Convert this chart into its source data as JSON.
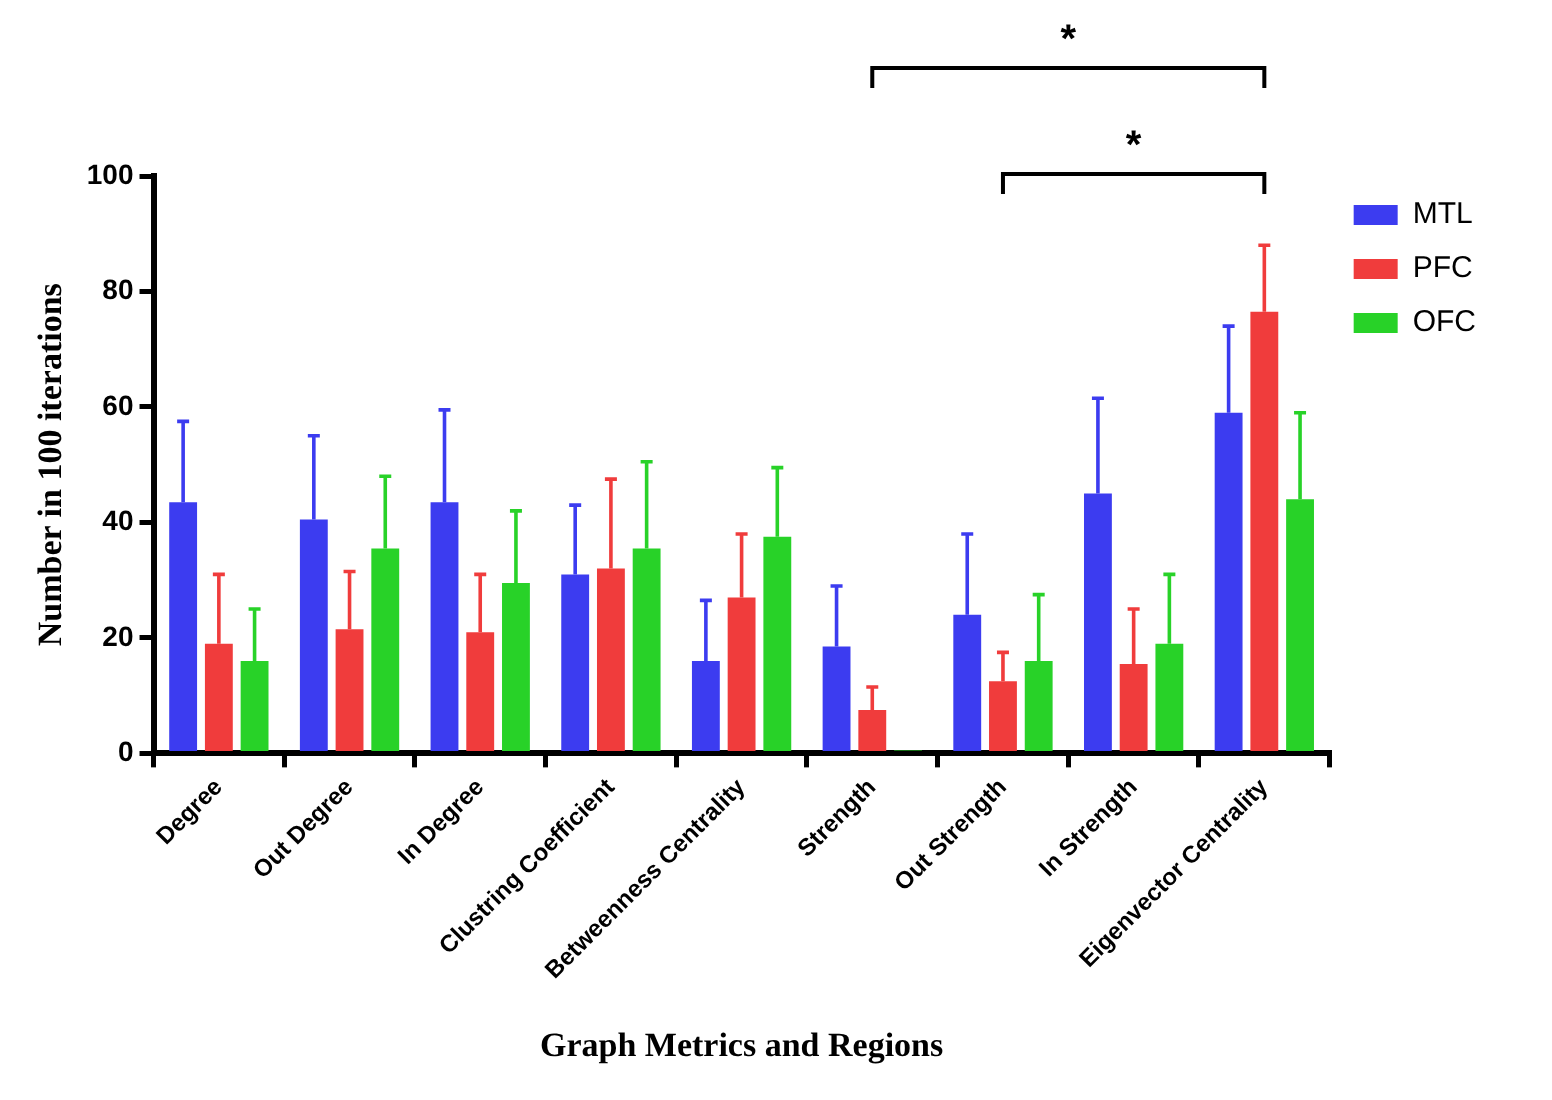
{
  "chart_data": {
    "type": "bar",
    "xlabel": "Graph Metrics and Regions",
    "ylabel": "Number in 100 iterations",
    "categories": [
      "Degree",
      "Out Degree",
      "In Degree",
      "Clustring Coefficient",
      "Betweenness Centrality",
      "Strength",
      "Out Strength",
      "In Strength",
      "Eigenvector Centrality"
    ],
    "series": [
      {
        "name": "MTL",
        "color": "#3c3cf0",
        "values": [
          43.5,
          40.5,
          43.5,
          31,
          16,
          18.5,
          24,
          45,
          59
        ],
        "errors": [
          [
            43.5,
            57.5
          ],
          [
            40.5,
            55
          ],
          [
            43.5,
            59.5
          ],
          [
            31,
            43
          ],
          [
            16,
            26.5
          ],
          [
            18.5,
            29
          ],
          [
            24,
            38
          ],
          [
            45,
            61.5
          ],
          [
            59,
            74
          ]
        ]
      },
      {
        "name": "PFC",
        "color": "#f03c3c",
        "values": [
          19,
          21.5,
          21,
          32,
          27,
          7.5,
          12.5,
          15.5,
          76.5
        ],
        "errors": [
          [
            19,
            31
          ],
          [
            21.5,
            31.5
          ],
          [
            21,
            31
          ],
          [
            32,
            47.5
          ],
          [
            27,
            38
          ],
          [
            7.5,
            11.5
          ],
          [
            12.5,
            17.5
          ],
          [
            15.5,
            25
          ],
          [
            76.5,
            88
          ]
        ]
      },
      {
        "name": "OFC",
        "color": "#28d228",
        "values": [
          16,
          35.5,
          29.5,
          35.5,
          37.5,
          0.5,
          16,
          19,
          44
        ],
        "errors": [
          [
            16,
            25
          ],
          [
            35.5,
            48
          ],
          [
            29.5,
            42
          ],
          [
            35.5,
            50.5
          ],
          [
            37.5,
            49.5
          ],
          null,
          [
            16,
            27.5
          ],
          [
            19,
            31
          ],
          [
            44,
            59
          ]
        ]
      }
    ],
    "ylim": [
      0,
      100
    ],
    "yticks": [
      0,
      20,
      40,
      60,
      80,
      100
    ],
    "grid": false,
    "legend": "top right",
    "annotations": [
      "*",
      "*"
    ]
  }
}
